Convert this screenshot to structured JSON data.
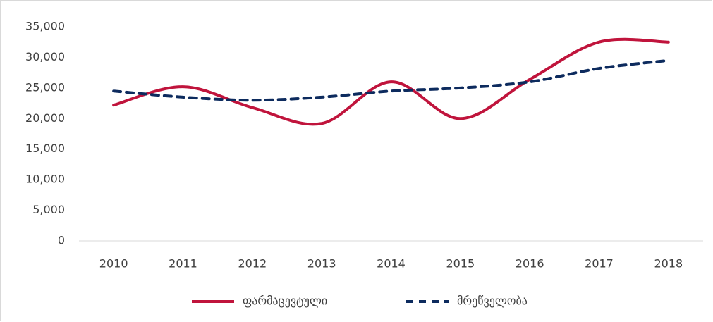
{
  "chart_data": {
    "type": "line",
    "categories": [
      "2010",
      "2011",
      "2012",
      "2013",
      "2014",
      "2015",
      "2016",
      "2017",
      "2018"
    ],
    "series": [
      {
        "name": "ფარმაცევტული",
        "color": "#c0143c",
        "dash": false,
        "values": [
          22200,
          25200,
          21800,
          19200,
          26000,
          20000,
          26400,
          32500,
          32500
        ]
      },
      {
        "name": "მრეწველობა",
        "color": "#0d2b5e",
        "dash": true,
        "values": [
          24500,
          23500,
          23000,
          23500,
          24500,
          25000,
          26000,
          28200,
          29500
        ]
      }
    ],
    "ylim": [
      0,
      35000
    ],
    "yticks": [
      0,
      {
        "value": 5000,
        "label": "5,000"
      },
      {
        "value": 10000,
        "label": "10,000"
      },
      {
        "value": 15000,
        "label": "15,000"
      },
      {
        "value": 20000,
        "label": "20,000"
      },
      {
        "value": 25000,
        "label": "25,000"
      },
      {
        "value": 30000,
        "label": "30,000"
      },
      {
        "value": 35000,
        "label": "35,000"
      }
    ],
    "grid": false,
    "legend": "bottom"
  }
}
